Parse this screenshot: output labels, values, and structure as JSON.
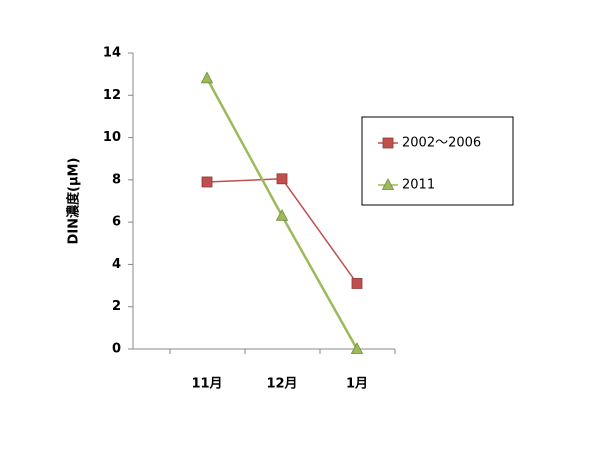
{
  "chart_data": {
    "type": "line",
    "y_label": "DIN濃度(μM)",
    "categories": [
      "11月",
      "12月",
      "1月"
    ],
    "series": [
      {
        "name": "2002〜2006",
        "color": "#c0504d",
        "marker": "square",
        "values": [
          7.9,
          8.05,
          3.1
        ]
      },
      {
        "name": "2011",
        "color": "#9bbb59",
        "marker": "triangle",
        "values": [
          12.8,
          6.3,
          0
        ]
      }
    ],
    "ylim": [
      0,
      14
    ],
    "yticks": [
      0,
      2,
      4,
      6,
      8,
      10,
      12,
      14
    ],
    "legend": "right"
  }
}
